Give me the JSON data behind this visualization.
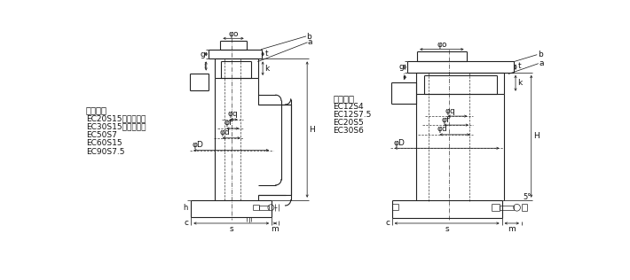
{
  "bg_color": "#ffffff",
  "line_color": "#222222",
  "text_color": "#111111",
  "dim_color": "#222222",
  "fig_width": 7.1,
  "fig_height": 3.16,
  "dpi": 100,
  "left_title": "適応機種",
  "left_models": [
    "EC20S15（把手付）",
    "EC30S15（把手付）",
    "EC50S7",
    "EC60S15",
    "EC90S7.5"
  ],
  "right_title": "適応機種",
  "right_models": [
    "EC12S4",
    "EC12S7.5",
    "EC20S5",
    "EC30S6"
  ]
}
